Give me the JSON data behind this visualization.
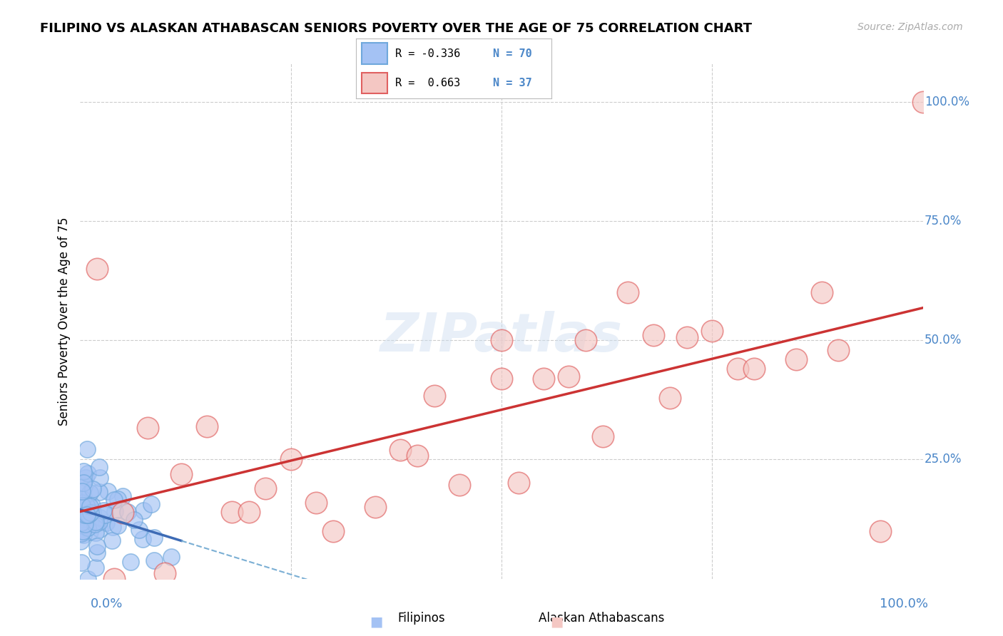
{
  "title": "FILIPINO VS ALASKAN ATHABASCAN SENIORS POVERTY OVER THE AGE OF 75 CORRELATION CHART",
  "source": "Source: ZipAtlas.com",
  "ylabel": "Seniors Poverty Over the Age of 75",
  "watermark": "ZIPatlas",
  "blue_face": "#a4c2f4",
  "blue_edge": "#6fa8dc",
  "pink_face": "#f4c7c3",
  "pink_edge": "#e06060",
  "trend_blue_solid": "#3d6bb5",
  "trend_blue_dash": "#7bafd4",
  "trend_pink": "#cc3333",
  "label_color": "#4a86c8",
  "grid_color": "#cccccc",
  "figsize": [
    14.06,
    8.92
  ],
  "dpi": 100
}
